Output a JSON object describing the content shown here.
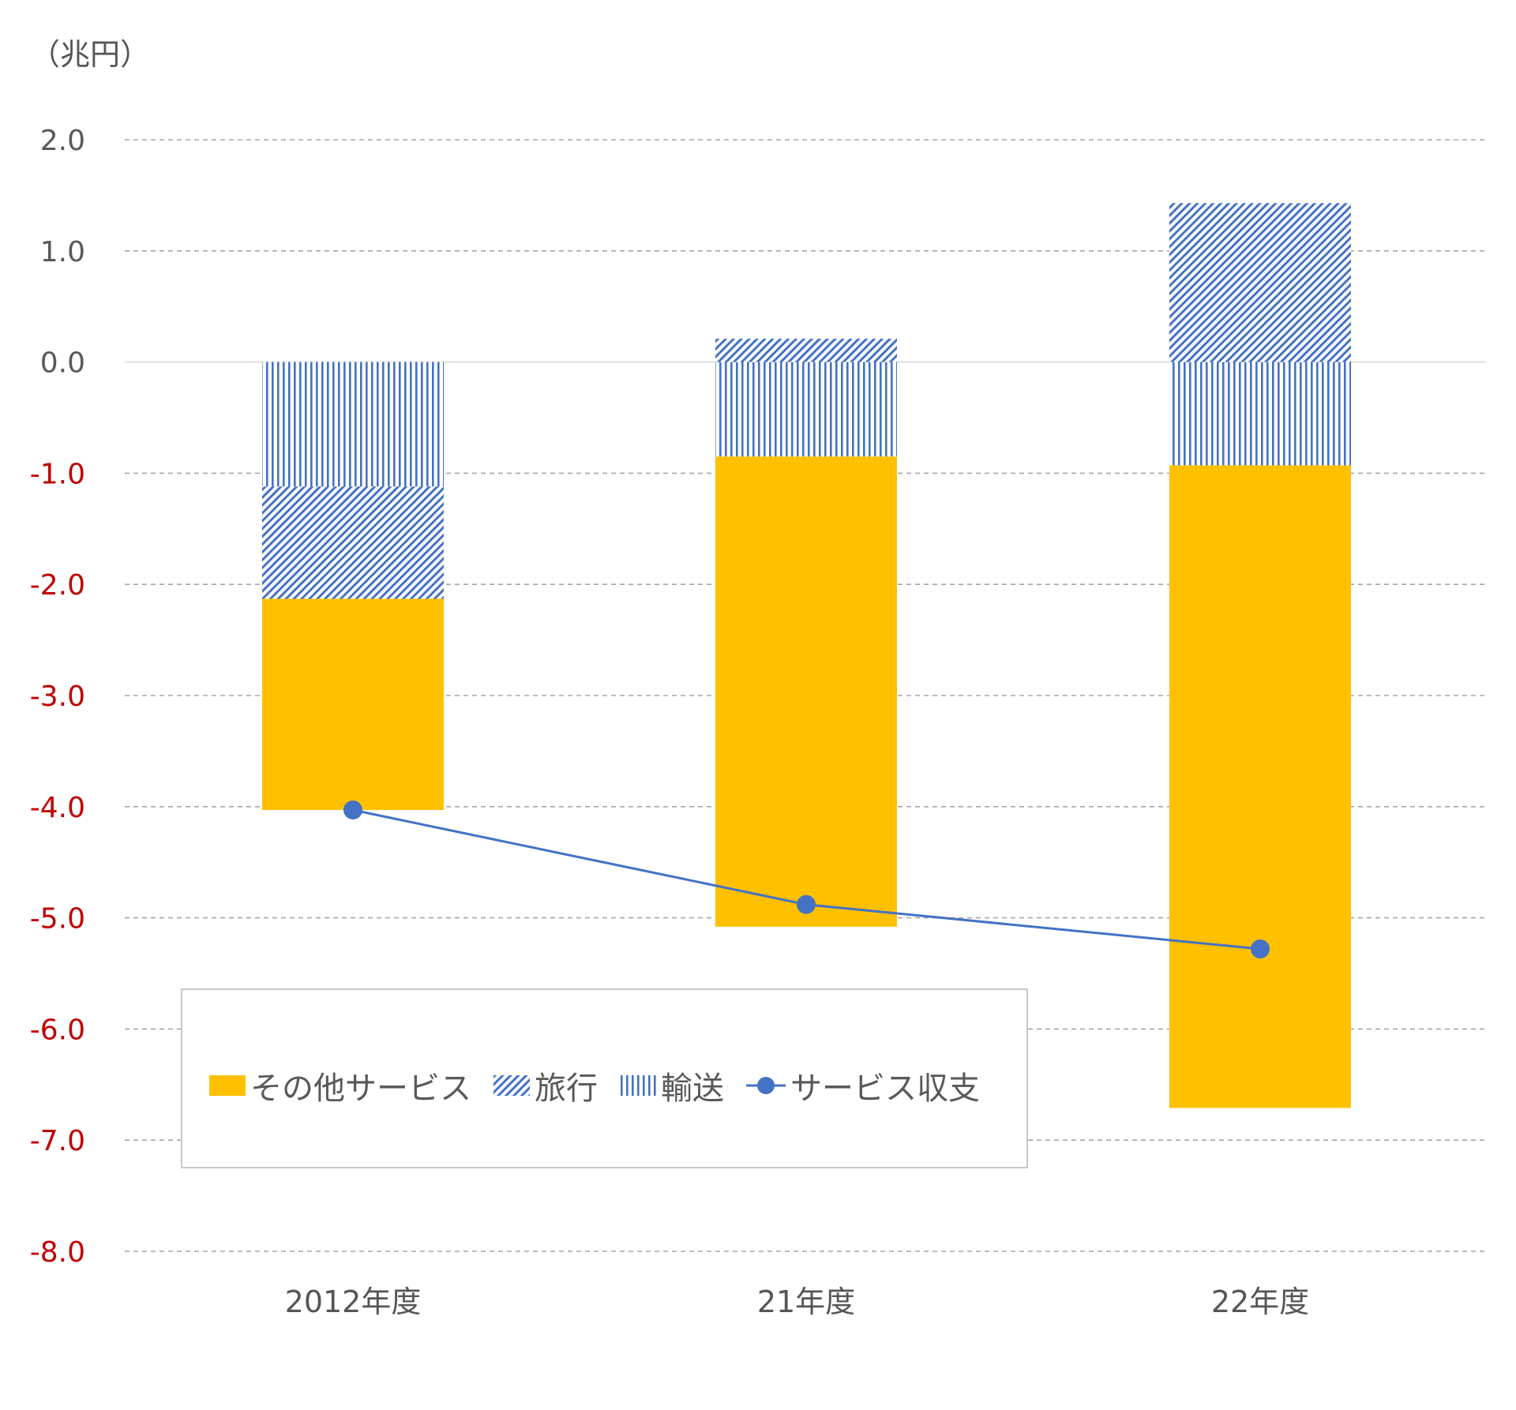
{
  "unit_label": "（兆円）",
  "colors": {
    "other_services": "#FFC000",
    "travel": "#4472C4",
    "transport": "#4472C4",
    "balance": "#4472C4",
    "negative_tick": "#C00000",
    "positive_tick": "#595959",
    "grid": "#A6A6A6"
  },
  "legend": {
    "other_services": "その他サービス",
    "travel": "旅行",
    "transport": "輸送",
    "balance": "サービス収支"
  },
  "chart_data": {
    "type": "bar",
    "stacked": true,
    "categories": [
      "2012年度",
      "21年度",
      "22年度"
    ],
    "series": [
      {
        "name": "輸送",
        "values": [
          -1.12,
          -0.85,
          -0.93
        ],
        "pattern": "vertical-lines"
      },
      {
        "name": "旅行",
        "values": [
          -1.01,
          0.21,
          1.43
        ],
        "pattern": "diagonal-lines"
      },
      {
        "name": "その他サービス",
        "values": [
          -1.9,
          -4.23,
          -5.78
        ],
        "pattern": "solid"
      },
      {
        "name": "サービス収支",
        "values": [
          -4.03,
          -4.88,
          -5.28
        ],
        "type": "line"
      }
    ],
    "yticks": [
      "2.0",
      "1.0",
      "0.0",
      "-1.0",
      "-2.0",
      "-3.0",
      "-4.0",
      "-5.0",
      "-6.0",
      "-7.0",
      "-8.0"
    ],
    "ylim": [
      -8,
      2
    ],
    "grid": true,
    "legend_position": "bottom-left-inside"
  }
}
